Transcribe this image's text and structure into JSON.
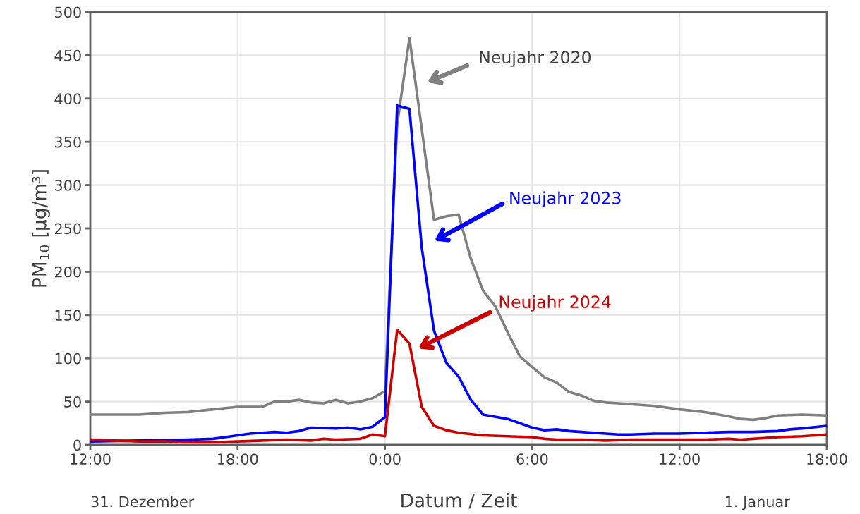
{
  "chart_data": {
    "type": "line",
    "xlabel": "Datum / Zeit",
    "ylabel": "PM$_{10}$ [µg/m³]",
    "xlim": [
      "2023-12-31T12:00",
      "2024-01-01T18:00"
    ],
    "xticks": [
      {
        "value": "2023-12-31T12:00",
        "label": "12:00"
      },
      {
        "value": "2023-12-31T18:00",
        "label": "18:00"
      },
      {
        "value": "2024-01-01T00:00",
        "label": "0:00"
      },
      {
        "value": "2024-01-01T06:00",
        "label": "6:00"
      },
      {
        "value": "2024-01-01T12:00",
        "label": "12:00"
      },
      {
        "value": "2024-01-01T18:00",
        "label": "18:00"
      }
    ],
    "ylim": [
      0,
      500
    ],
    "yticks": [
      0,
      50,
      100,
      150,
      200,
      250,
      300,
      350,
      400,
      450,
      500
    ],
    "grid": true,
    "marker": "none",
    "line_style": "solid",
    "series": [
      {
        "color": "#808080",
        "x": [
          "2023-12-31T12:00",
          "2023-12-31T13:00",
          "2023-12-31T14:00",
          "2023-12-31T15:00",
          "2023-12-31T16:00",
          "2023-12-31T17:00",
          "2023-12-31T18:00",
          "2023-12-31T19:00",
          "2023-12-31T19:30",
          "2023-12-31T20:00",
          "2023-12-31T20:30",
          "2023-12-31T21:00",
          "2023-12-31T21:30",
          "2023-12-31T22:00",
          "2023-12-31T22:30",
          "2023-12-31T23:00",
          "2023-12-31T23:30",
          "2024-01-01T00:00",
          "2024-01-01T00:30",
          "2024-01-01T01:00",
          "2024-01-01T02:00",
          "2024-01-01T02:30",
          "2024-01-01T03:00",
          "2024-01-01T03:30",
          "2024-01-01T04:00",
          "2024-01-01T04:30",
          "2024-01-01T05:00",
          "2024-01-01T05:30",
          "2024-01-01T06:00",
          "2024-01-01T06:30",
          "2024-01-01T07:00",
          "2024-01-01T07:30",
          "2024-01-01T08:00",
          "2024-01-01T08:30",
          "2024-01-01T09:00",
          "2024-01-01T09:30",
          "2024-01-01T10:00",
          "2024-01-01T11:00",
          "2024-01-01T12:00",
          "2024-01-01T13:00",
          "2024-01-01T14:00",
          "2024-01-01T14:30",
          "2024-01-01T15:00",
          "2024-01-01T15:30",
          "2024-01-01T16:00",
          "2024-01-01T17:00",
          "2024-01-01T18:00"
        ],
        "values": [
          35,
          35,
          35,
          37,
          38,
          41,
          44,
          44,
          50,
          50,
          52,
          49,
          48,
          52,
          48,
          50,
          54,
          62,
          370,
          470,
          260,
          264,
          266,
          215,
          178,
          160,
          130,
          102,
          90,
          78,
          72,
          61,
          57,
          51,
          49,
          48,
          47,
          45,
          41,
          38,
          33,
          30,
          29,
          31,
          34,
          35,
          34
        ]
      },
      {
        "color": "#0000ff",
        "x": [
          "2023-12-31T12:00",
          "2023-12-31T14:00",
          "2023-12-31T16:00",
          "2023-12-31T17:00",
          "2023-12-31T17:30",
          "2023-12-31T18:00",
          "2023-12-31T18:30",
          "2023-12-31T19:00",
          "2023-12-31T19:30",
          "2023-12-31T20:00",
          "2023-12-31T20:30",
          "2023-12-31T21:00",
          "2023-12-31T22:00",
          "2023-12-31T22:30",
          "2023-12-31T23:00",
          "2023-12-31T23:30",
          "2024-01-01T00:00",
          "2024-01-01T00:30",
          "2024-01-01T01:00",
          "2024-01-01T01:30",
          "2024-01-01T02:00",
          "2024-01-01T02:30",
          "2024-01-01T03:00",
          "2024-01-01T03:30",
          "2024-01-01T04:00",
          "2024-01-01T05:00",
          "2024-01-01T05:30",
          "2024-01-01T06:00",
          "2024-01-01T06:30",
          "2024-01-01T07:00",
          "2024-01-01T07:30",
          "2024-01-01T08:00",
          "2024-01-01T09:00",
          "2024-01-01T09:30",
          "2024-01-01T10:00",
          "2024-01-01T11:00",
          "2024-01-01T12:00",
          "2024-01-01T13:00",
          "2024-01-01T14:00",
          "2024-01-01T15:00",
          "2024-01-01T16:00",
          "2024-01-01T16:30",
          "2024-01-01T17:00",
          "2024-01-01T18:00"
        ],
        "values": [
          4,
          5,
          6,
          7,
          9,
          11,
          13,
          14,
          15,
          14,
          16,
          20,
          19,
          20,
          18,
          21,
          32,
          392,
          388,
          228,
          132,
          95,
          79,
          52,
          35,
          30,
          25,
          20,
          17,
          18,
          16,
          15,
          13,
          12,
          12,
          13,
          13,
          14,
          15,
          15,
          16,
          18,
          19,
          22
        ]
      },
      {
        "color": "#cc0000",
        "x": [
          "2023-12-31T12:00",
          "2023-12-31T14:00",
          "2023-12-31T15:00",
          "2023-12-31T16:00",
          "2023-12-31T17:00",
          "2023-12-31T18:00",
          "2023-12-31T19:00",
          "2023-12-31T20:00",
          "2023-12-31T21:00",
          "2023-12-31T21:30",
          "2023-12-31T22:00",
          "2023-12-31T23:00",
          "2023-12-31T23:30",
          "2024-01-01T00:00",
          "2024-01-01T00:30",
          "2024-01-01T01:00",
          "2024-01-01T01:30",
          "2024-01-01T02:00",
          "2024-01-01T02:30",
          "2024-01-01T03:00",
          "2024-01-01T04:00",
          "2024-01-01T05:00",
          "2024-01-01T06:00",
          "2024-01-01T06:30",
          "2024-01-01T07:00",
          "2024-01-01T08:00",
          "2024-01-01T09:00",
          "2024-01-01T10:00",
          "2024-01-01T11:00",
          "2024-01-01T12:00",
          "2024-01-01T13:00",
          "2024-01-01T14:00",
          "2024-01-01T14:30",
          "2024-01-01T15:00",
          "2024-01-01T16:00",
          "2024-01-01T17:00",
          "2024-01-01T18:00"
        ],
        "values": [
          6,
          4,
          4,
          3,
          3,
          4,
          5,
          6,
          5,
          7,
          6,
          7,
          12,
          10,
          133,
          117,
          44,
          22,
          17,
          14,
          11,
          10,
          9,
          7,
          6,
          6,
          5,
          6,
          6,
          6,
          6,
          7,
          6,
          7,
          9,
          10,
          12
        ]
      }
    ],
    "annotations": [
      "Neujahr 2020",
      "Neujahr 2023",
      "Neujahr 2024",
      "31. Dezember",
      "1. Januar"
    ]
  }
}
